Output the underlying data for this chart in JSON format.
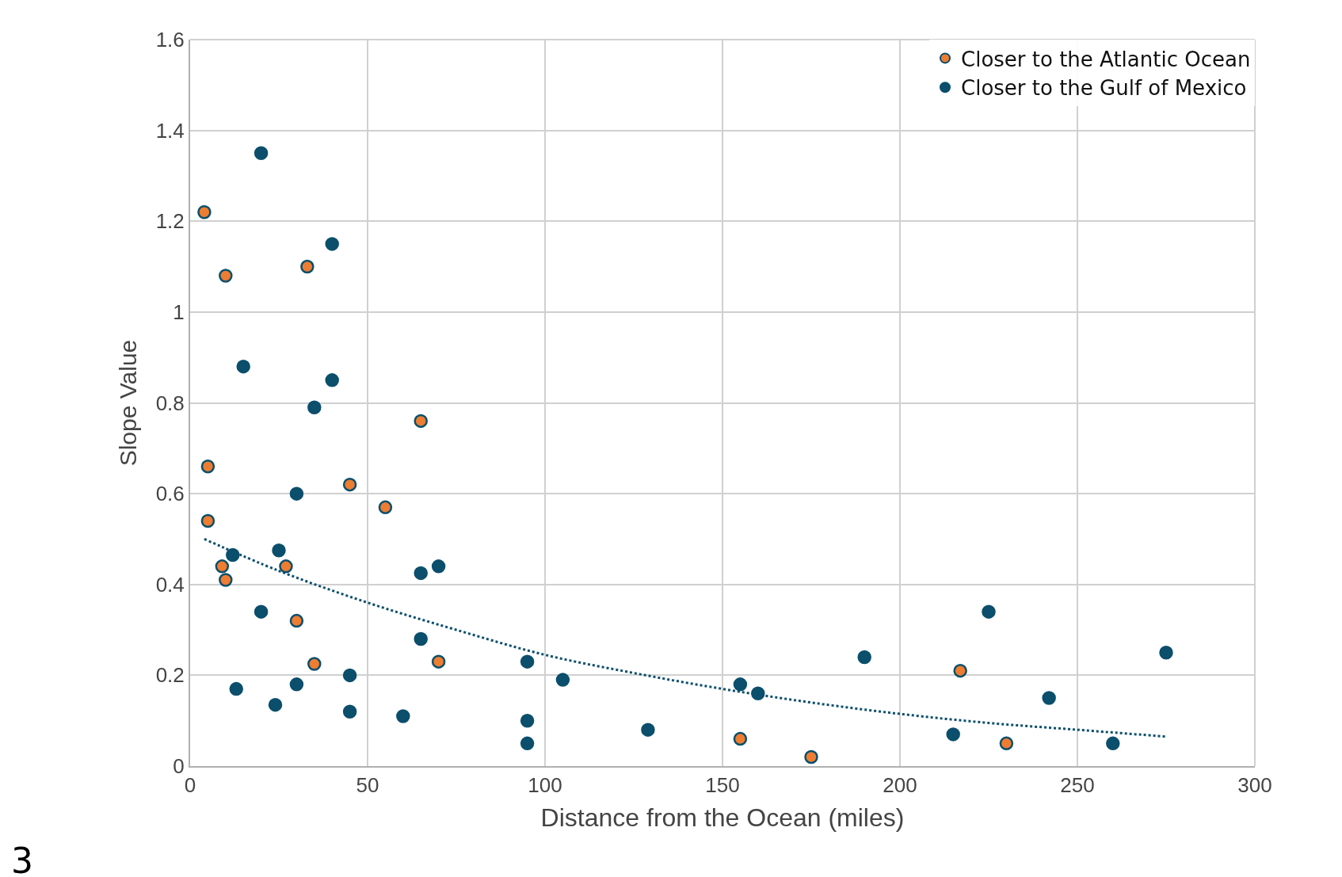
{
  "chart_data": {
    "type": "scatter",
    "xlabel": "Distance from the Ocean (miles)",
    "ylabel": "Slope Value",
    "xlim": [
      0,
      300
    ],
    "xticks": [
      0,
      50,
      100,
      150,
      200,
      250,
      300
    ],
    "ylim": [
      0,
      1.6
    ],
    "yticks": [
      0,
      {
        "value": 0.2,
        "label": "0.2"
      },
      {
        "value": 0.4,
        "label": "0.4"
      },
      {
        "value": 0.6,
        "label": "0.6"
      },
      {
        "value": 0.8,
        "label": "0.8"
      },
      1,
      {
        "value": 1.2,
        "label": "1.2"
      },
      {
        "value": 1.4,
        "label": "1.4"
      },
      {
        "value": 1.6,
        "label": "1.6"
      }
    ],
    "grid": true,
    "legend": "top right",
    "marker": "circle",
    "annotations": [
      "3"
    ],
    "series": [
      {
        "name": "Closer to the Atlantic Ocean",
        "color": "#ed7d31",
        "x": [
          4,
          10,
          33,
          65,
          5,
          45,
          55,
          5,
          9,
          27,
          10,
          30,
          35,
          70,
          217,
          155,
          175,
          230
        ],
        "values": [
          1.22,
          1.08,
          1.1,
          0.76,
          0.66,
          0.62,
          0.57,
          0.54,
          0.44,
          0.44,
          0.41,
          0.32,
          0.225,
          0.23,
          0.21,
          0.06,
          0.02,
          0.05
        ]
      },
      {
        "name": "Closer to the Gulf of Mexico",
        "color": "#0b4f6c",
        "x": [
          20,
          40,
          15,
          40,
          35,
          30,
          12,
          25,
          65,
          70,
          20,
          65,
          45,
          30,
          13,
          24,
          45,
          60,
          95,
          95,
          95,
          105,
          129,
          155,
          160,
          190,
          215,
          225,
          242,
          260,
          275
        ],
        "values": [
          1.35,
          1.15,
          0.88,
          0.85,
          0.79,
          0.6,
          0.465,
          0.475,
          0.425,
          0.44,
          0.34,
          0.28,
          0.2,
          0.18,
          0.17,
          0.135,
          0.12,
          0.11,
          0.23,
          0.1,
          0.05,
          0.19,
          0.08,
          0.18,
          0.16,
          0.24,
          0.07,
          0.34,
          0.15,
          0.05,
          0.25
        ]
      },
      {
        "type": "line",
        "line_style": "dotted",
        "marker": "none",
        "color": "#0b4f6c",
        "x": [
          4,
          25,
          50,
          75,
          100,
          125,
          150,
          175,
          200,
          225,
          250,
          275
        ],
        "values": [
          0.5,
          0.43,
          0.36,
          0.3,
          0.245,
          0.205,
          0.17,
          0.14,
          0.115,
          0.095,
          0.08,
          0.065
        ]
      }
    ]
  }
}
